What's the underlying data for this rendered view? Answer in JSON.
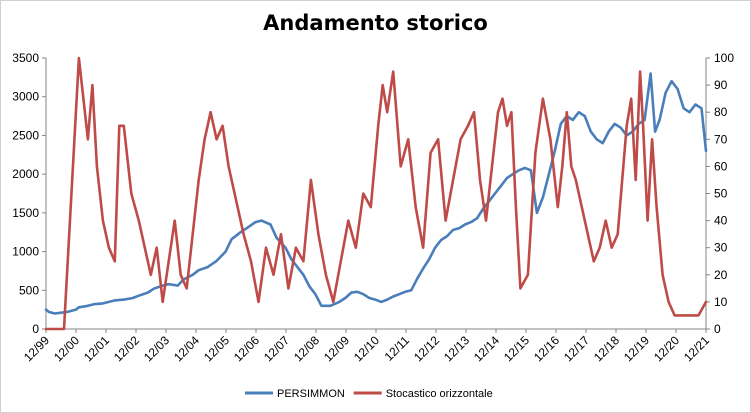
{
  "chart_data": {
    "type": "line",
    "title": "Andamento storico",
    "x_ticks": [
      "12/99",
      "12/00",
      "12/01",
      "12/02",
      "12/03",
      "12/04",
      "12/05",
      "12/06",
      "12/07",
      "12/08",
      "12/09",
      "12/10",
      "12/11",
      "12/12",
      "12/13",
      "12/14",
      "12/15",
      "12/16",
      "12/17",
      "12/18",
      "12/19",
      "12/20",
      "12/21"
    ],
    "y_left": {
      "ticks": [
        0,
        500,
        1000,
        1500,
        2000,
        2500,
        3000,
        3500
      ],
      "range": [
        0,
        3500
      ]
    },
    "y_right": {
      "ticks": [
        0,
        10,
        20,
        30,
        40,
        50,
        60,
        70,
        80,
        90,
        100
      ],
      "range": [
        0,
        100
      ]
    },
    "legend_position": "bottom",
    "series": [
      {
        "name": "PERSIMMON",
        "axis": "left",
        "color": "#4a7ebb",
        "x": [
          1999.9,
          2000.0,
          2000.2,
          2000.4,
          2000.6,
          2000.9,
          2001.0,
          2001.3,
          2001.5,
          2001.8,
          2002.0,
          2002.2,
          2002.5,
          2002.8,
          2003.0,
          2003.3,
          2003.5,
          2003.8,
          2004.0,
          2004.3,
          2004.5,
          2004.8,
          2005.0,
          2005.3,
          2005.6,
          2005.9,
          2006.1,
          2006.4,
          2006.6,
          2006.9,
          2007.1,
          2007.4,
          2007.6,
          2007.9,
          2008.1,
          2008.3,
          2008.5,
          2008.7,
          2008.9,
          2009.1,
          2009.4,
          2009.7,
          2009.9,
          2010.1,
          2010.3,
          2010.5,
          2010.7,
          2010.9,
          2011.1,
          2011.3,
          2011.5,
          2011.7,
          2011.9,
          2012.1,
          2012.3,
          2012.5,
          2012.7,
          2012.9,
          2013.1,
          2013.3,
          2013.5,
          2013.7,
          2013.9,
          2014.1,
          2014.3,
          2014.5,
          2014.7,
          2014.9,
          2015.1,
          2015.3,
          2015.5,
          2015.7,
          2015.9,
          2016.1,
          2016.3,
          2016.5,
          2016.7,
          2016.9,
          2017.1,
          2017.3,
          2017.5,
          2017.7,
          2017.9,
          2018.1,
          2018.3,
          2018.5,
          2018.7,
          2018.9,
          2019.1,
          2019.3,
          2019.5,
          2019.7,
          2019.9,
          2020.1,
          2020.25,
          2020.4,
          2020.6,
          2020.8,
          2021.0,
          2021.2,
          2021.4,
          2021.6,
          2021.8,
          2021.95
        ],
        "y": [
          250,
          220,
          200,
          210,
          220,
          250,
          280,
          300,
          320,
          330,
          350,
          370,
          380,
          400,
          430,
          470,
          520,
          560,
          580,
          560,
          640,
          700,
          760,
          800,
          880,
          1000,
          1160,
          1250,
          1300,
          1380,
          1400,
          1350,
          1180,
          1050,
          900,
          800,
          700,
          550,
          450,
          300,
          300,
          350,
          400,
          470,
          480,
          450,
          400,
          380,
          350,
          380,
          420,
          450,
          480,
          500,
          650,
          780,
          900,
          1050,
          1150,
          1200,
          1280,
          1300,
          1350,
          1380,
          1430,
          1550,
          1650,
          1750,
          1850,
          1950,
          2000,
          2050,
          2080,
          2050,
          1500,
          1700,
          2000,
          2300,
          2650,
          2750,
          2700,
          2800,
          2750,
          2550,
          2450,
          2400,
          2550,
          2650,
          2600,
          2500,
          2550,
          2650,
          2700,
          3300,
          2550,
          2700,
          3050,
          3200,
          3100,
          2850,
          2800,
          2900,
          2850,
          2300
        ]
      },
      {
        "name": "Stocastico orizzontale",
        "axis": "right",
        "color": "#be4b48",
        "x": [
          1999.9,
          2000.5,
          2001.0,
          2001.15,
          2001.3,
          2001.45,
          2001.6,
          2001.8,
          2002.0,
          2002.2,
          2002.35,
          2002.5,
          2002.75,
          2003.0,
          2003.2,
          2003.4,
          2003.6,
          2003.8,
          2004.0,
          2004.2,
          2004.4,
          2004.6,
          2004.8,
          2005.0,
          2005.2,
          2005.4,
          2005.6,
          2005.8,
          2006.0,
          2006.2,
          2006.5,
          2006.75,
          2007.0,
          2007.25,
          2007.5,
          2007.75,
          2008.0,
          2008.25,
          2008.5,
          2008.75,
          2009.0,
          2009.25,
          2009.5,
          2009.75,
          2010.0,
          2010.25,
          2010.5,
          2010.75,
          2011.0,
          2011.15,
          2011.3,
          2011.5,
          2011.75,
          2012.0,
          2012.25,
          2012.5,
          2012.75,
          2013.0,
          2013.25,
          2013.5,
          2013.75,
          2014.0,
          2014.2,
          2014.4,
          2014.6,
          2014.8,
          2015.0,
          2015.15,
          2015.3,
          2015.45,
          2015.6,
          2015.75,
          2016.0,
          2016.25,
          2016.5,
          2016.75,
          2017.0,
          2017.15,
          2017.3,
          2017.45,
          2017.6,
          2017.8,
          2018.0,
          2018.2,
          2018.4,
          2018.6,
          2018.8,
          2019.0,
          2019.15,
          2019.3,
          2019.45,
          2019.6,
          2019.75,
          2019.85,
          2020.0,
          2020.15,
          2020.3,
          2020.5,
          2020.7,
          2020.9,
          2021.1,
          2021.3,
          2021.5,
          2021.7,
          2021.95
        ],
        "y": [
          0,
          0,
          100,
          85,
          70,
          90,
          60,
          40,
          30,
          25,
          75,
          75,
          50,
          40,
          30,
          20,
          30,
          10,
          25,
          40,
          20,
          15,
          35,
          55,
          70,
          80,
          70,
          75,
          60,
          50,
          35,
          25,
          10,
          30,
          20,
          35,
          15,
          30,
          25,
          55,
          35,
          20,
          10,
          25,
          40,
          30,
          50,
          45,
          75,
          90,
          80,
          95,
          60,
          70,
          45,
          30,
          65,
          70,
          40,
          55,
          70,
          75,
          80,
          55,
          40,
          60,
          80,
          85,
          75,
          80,
          45,
          15,
          20,
          65,
          85,
          70,
          45,
          60,
          80,
          60,
          55,
          45,
          35,
          25,
          30,
          40,
          30,
          35,
          55,
          75,
          85,
          55,
          95,
          75,
          40,
          70,
          45,
          20,
          10,
          5,
          5,
          5,
          5,
          5,
          10
        ]
      }
    ]
  }
}
